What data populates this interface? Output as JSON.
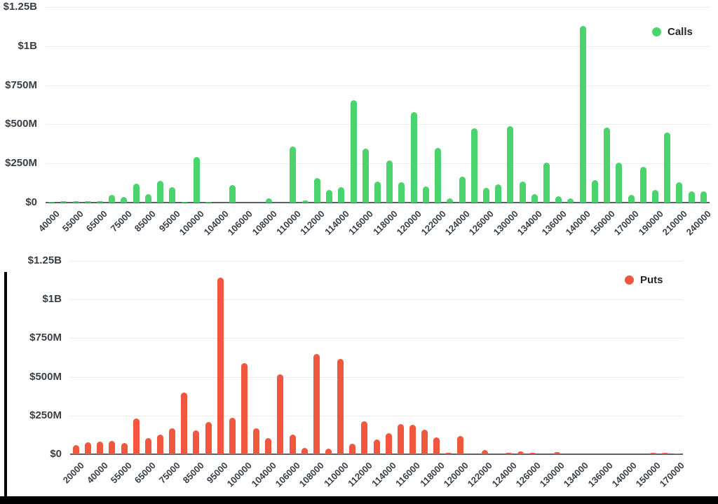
{
  "page": {
    "background": "#ffffff",
    "frame_color": "#000000"
  },
  "chart_data": [
    {
      "type": "bar",
      "name": "calls",
      "title": "",
      "legend": [
        "Calls"
      ],
      "legend_position": "top-right",
      "bar_color": "#4bd46d",
      "unit": "USD millions",
      "ylim": [
        0,
        1250
      ],
      "grid": true,
      "x_label_rotation": -45,
      "y_tick_labels": [
        "$1.25B",
        "$1B",
        "$750M",
        "$500M",
        "$250M",
        "$0"
      ],
      "x_tick_labels": [
        "40000",
        "55000",
        "65000",
        "75000",
        "85000",
        "95000",
        "100000",
        "104000",
        "106000",
        "108000",
        "110000",
        "112000",
        "114000",
        "116000",
        "118000",
        "120000",
        "122000",
        "124000",
        "126000",
        "130000",
        "134000",
        "136000",
        "140000",
        "150000",
        "170000",
        "190000",
        "210000",
        "240000"
      ],
      "categories": [
        "40000",
        "",
        "55000",
        "",
        "65000",
        "",
        "75000",
        "",
        "85000",
        "",
        "95000",
        "",
        "100000",
        "",
        "104000",
        "",
        "106000",
        "",
        "108000",
        "",
        "110000",
        "",
        "112000",
        "",
        "114000",
        "",
        "116000",
        "",
        "118000",
        "",
        "120000",
        "",
        "122000",
        "",
        "124000",
        "",
        "126000",
        "",
        "130000",
        "",
        "134000",
        "",
        "136000",
        "",
        "140000",
        "",
        "150000",
        "",
        "170000",
        "",
        "190000",
        "",
        "210000",
        "",
        "240000"
      ],
      "values": [
        2,
        10,
        8,
        11,
        8,
        48,
        38,
        122,
        53,
        138,
        100,
        5,
        292,
        5,
        0,
        112,
        0,
        0,
        28,
        0,
        360,
        13,
        158,
        80,
        100,
        655,
        346,
        133,
        270,
        128,
        578,
        103,
        350,
        25,
        165,
        473,
        92,
        118,
        490,
        133,
        52,
        255,
        39,
        28,
        1130,
        145,
        481,
        255,
        48,
        230,
        81,
        447,
        130,
        73,
        70
      ]
    },
    {
      "type": "bar",
      "name": "puts",
      "title": "",
      "legend": [
        "Puts"
      ],
      "legend_position": "top-right",
      "bar_color": "#f0573e",
      "unit": "USD millions",
      "ylim": [
        0,
        1250
      ],
      "grid": true,
      "x_label_rotation": -45,
      "y_tick_labels": [
        "$1.25B",
        "$1B",
        "$750M",
        "$500M",
        "$250M",
        "$0"
      ],
      "x_tick_labels": [
        "20000",
        "40000",
        "55000",
        "65000",
        "75000",
        "85000",
        "95000",
        "100000",
        "104000",
        "106000",
        "108000",
        "110000",
        "112000",
        "114000",
        "116000",
        "118000",
        "120000",
        "122000",
        "124000",
        "126000",
        "130000",
        "134000",
        "136000",
        "140000",
        "150000",
        "170000"
      ],
      "categories": [
        "20000",
        "",
        "40000",
        "",
        "55000",
        "",
        "65000",
        "",
        "75000",
        "",
        "85000",
        "",
        "95000",
        "",
        "100000",
        "",
        "104000",
        "",
        "106000",
        "",
        "108000",
        "",
        "110000",
        "",
        "112000",
        "",
        "114000",
        "",
        "116000",
        "",
        "118000",
        "",
        "120000",
        "",
        "122000",
        "",
        "124000",
        "",
        "126000",
        "",
        "130000",
        "",
        "134000",
        "",
        "136000",
        "",
        "140000",
        "",
        "150000",
        "",
        "170000"
      ],
      "values": [
        57,
        75,
        83,
        87,
        72,
        230,
        105,
        125,
        167,
        398,
        155,
        210,
        1142,
        237,
        590,
        167,
        102,
        518,
        128,
        42,
        646,
        35,
        618,
        66,
        212,
        96,
        134,
        197,
        190,
        157,
        108,
        10,
        118,
        0,
        26,
        0,
        10,
        20,
        8,
        0,
        15,
        0,
        0,
        0,
        0,
        0,
        0,
        0,
        8,
        7,
        2
      ]
    }
  ]
}
